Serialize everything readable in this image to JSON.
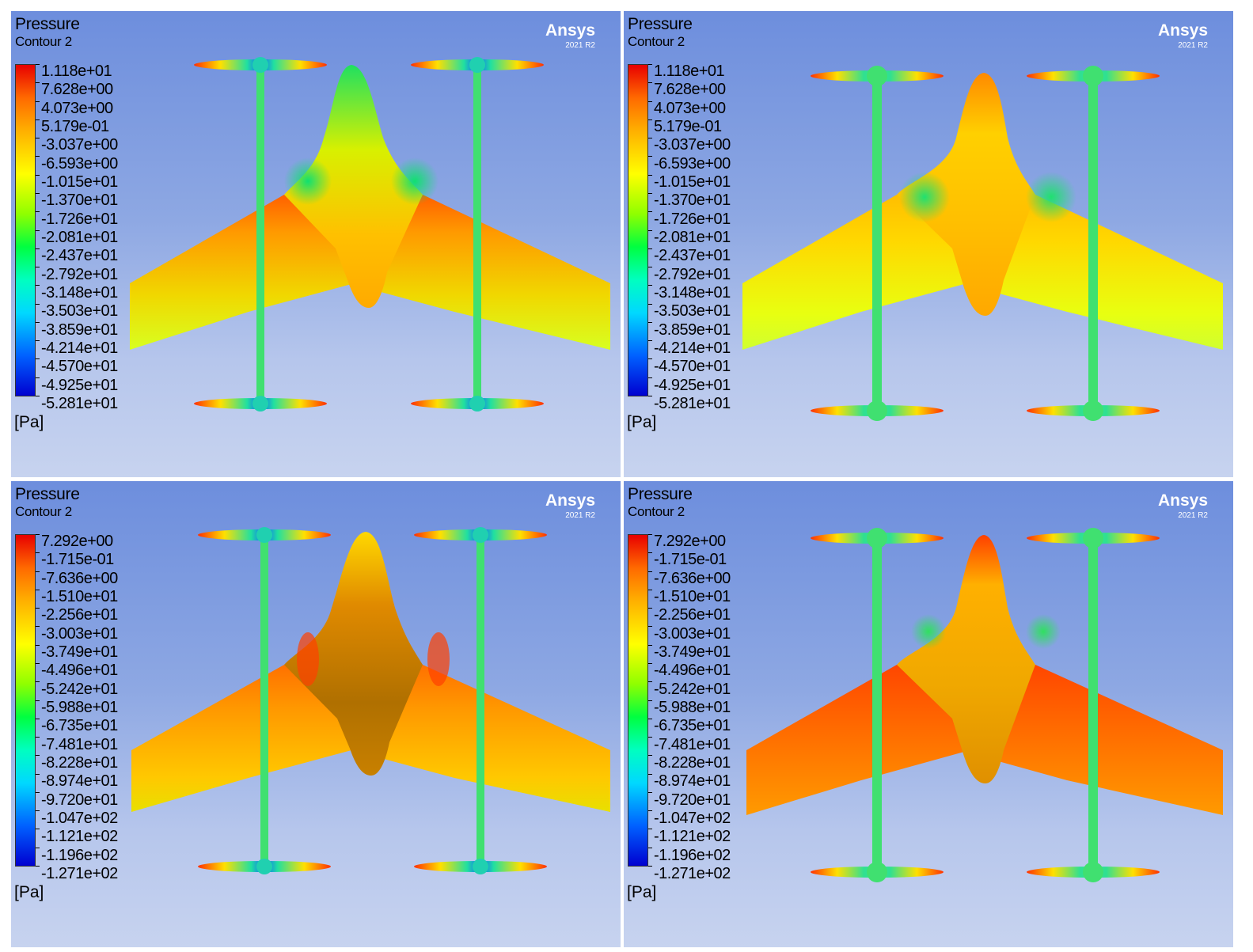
{
  "panels": [
    {
      "title": "Pressure",
      "subtitle": "Contour 2",
      "brand": "Ansys",
      "version": "2021 R2",
      "unit": "[Pa]",
      "legend": [
        "1.118e+01",
        "7.628e+00",
        "4.073e+00",
        "5.179e-01",
        "-3.037e+00",
        "-6.593e+00",
        "-1.015e+01",
        "-1.370e+01",
        "-1.726e+01",
        "-2.081e+01",
        "-2.437e+01",
        "-2.792e+01",
        "-3.148e+01",
        "-3.503e+01",
        "-3.859e+01",
        "-4.214e+01",
        "-4.570e+01",
        "-4.925e+01",
        "-5.281e+01"
      ]
    },
    {
      "title": "Pressure",
      "subtitle": "Contour 2",
      "brand": "Ansys",
      "version": "2021 R2",
      "unit": "[Pa]",
      "legend": [
        "1.118e+01",
        "7.628e+00",
        "4.073e+00",
        "5.179e-01",
        "-3.037e+00",
        "-6.593e+00",
        "-1.015e+01",
        "-1.370e+01",
        "-1.726e+01",
        "-2.081e+01",
        "-2.437e+01",
        "-2.792e+01",
        "-3.148e+01",
        "-3.503e+01",
        "-3.859e+01",
        "-4.214e+01",
        "-4.570e+01",
        "-4.925e+01",
        "-5.281e+01"
      ]
    },
    {
      "title": "Pressure",
      "subtitle": "Contour 2",
      "brand": "Ansys",
      "version": "2021 R2",
      "unit": "[Pa]",
      "legend": [
        "7.292e+00",
        "-1.715e-01",
        "-7.636e+00",
        "-1.510e+01",
        "-2.256e+01",
        "-3.003e+01",
        "-3.749e+01",
        "-4.496e+01",
        "-5.242e+01",
        "-5.988e+01",
        "-6.735e+01",
        "-7.481e+01",
        "-8.228e+01",
        "-8.974e+01",
        "-9.720e+01",
        "-1.047e+02",
        "-1.121e+02",
        "-1.196e+02",
        "-1.271e+02"
      ]
    },
    {
      "title": "Pressure",
      "subtitle": "Contour 2",
      "brand": "Ansys",
      "version": "2021 R2",
      "unit": "[Pa]",
      "legend": [
        "7.292e+00",
        "-1.715e-01",
        "-7.636e+00",
        "-1.510e+01",
        "-2.256e+01",
        "-3.003e+01",
        "-3.749e+01",
        "-4.496e+01",
        "-5.242e+01",
        "-5.988e+01",
        "-6.735e+01",
        "-7.481e+01",
        "-8.228e+01",
        "-8.974e+01",
        "-9.720e+01",
        "-1.047e+02",
        "-1.121e+02",
        "-1.196e+02",
        "-1.271e+02"
      ]
    }
  ]
}
